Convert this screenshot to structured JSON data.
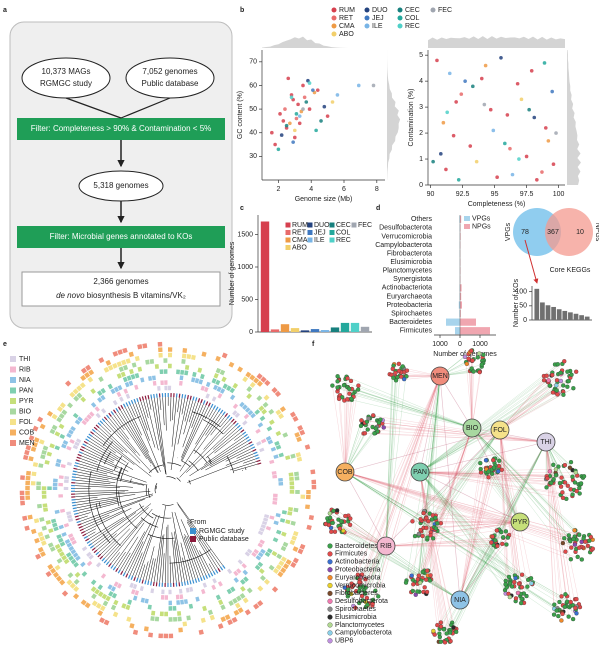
{
  "panel_labels": [
    "a",
    "b",
    "c",
    "d",
    "e",
    "f"
  ],
  "flowchart": {
    "source_left": [
      "10,373 MAGs",
      "RGMGC study"
    ],
    "source_right": [
      "7,052 genomes",
      "Public database"
    ],
    "filter1": "Filter: Completeness > 90% & Contamination < 5%",
    "intermediate": "5,318 genomes",
    "filter2": "Filter: Microbial genes annotated to KOs",
    "result": [
      "2,366 genomes",
      "de novo",
      "biosynthesis B vitamins/VK₂"
    ]
  },
  "chart_data": [
    {
      "type": "scatter",
      "xlabel": "Genome size (Mb)",
      "ylabel": "GC content (%)",
      "xlim": [
        1,
        8.5
      ],
      "xticks": [
        2,
        4,
        6,
        8
      ],
      "ylim": [
        20,
        75
      ],
      "yticks": [
        30,
        40,
        50,
        60,
        70
      ],
      "series": [
        {
          "name": "RUM",
          "color": "#d6404e",
          "x": [
            2.1,
            2.5,
            2.8,
            3.0,
            3.2,
            3.5,
            1.8,
            2.3,
            3.9,
            4.4,
            2.6,
            3.3,
            1.6,
            2.9,
            5.0
          ],
          "values": [
            48,
            42,
            56,
            38,
            52,
            60,
            35,
            45,
            50,
            58,
            63,
            44,
            40,
            54,
            47
          ]
        },
        {
          "name": "RET",
          "color": "#e86a6a",
          "x": [
            2.4,
            3.1,
            3.6
          ],
          "values": [
            50,
            46,
            55
          ]
        },
        {
          "name": "CMA",
          "color": "#ee9a45",
          "x": [
            2.7,
            4.2,
            3.4
          ],
          "values": [
            44,
            57,
            49
          ]
        },
        {
          "name": "ABO",
          "color": "#f2cf6a",
          "x": [
            3.0,
            5.3
          ],
          "values": [
            41,
            53
          ]
        },
        {
          "name": "DUO",
          "color": "#23427e",
          "x": [
            2.2,
            3.8,
            4.8
          ],
          "values": [
            39,
            62,
            51
          ]
        },
        {
          "name": "JEJ",
          "color": "#3f78c0",
          "x": [
            2.9,
            4.1
          ],
          "values": [
            36,
            58
          ]
        },
        {
          "name": "ILE",
          "color": "#78b4e6",
          "x": [
            3.3,
            6.9,
            5.6
          ],
          "values": [
            47,
            60,
            56
          ]
        },
        {
          "name": "CEC",
          "color": "#17807e",
          "x": [
            2.5,
            3.7,
            4.6
          ],
          "values": [
            43,
            53,
            45
          ]
        },
        {
          "name": "COL",
          "color": "#23a89c",
          "x": [
            3.1,
            4.3,
            2.0
          ],
          "values": [
            48,
            41,
            33
          ]
        },
        {
          "name": "REC",
          "color": "#4fd0c8",
          "x": [
            2.8,
            3.9
          ],
          "values": [
            55,
            61
          ]
        },
        {
          "name": "FEC",
          "color": "#a0a6b0",
          "x": [
            3.5,
            7.8
          ],
          "values": [
            50,
            60
          ]
        }
      ]
    },
    {
      "type": "scatter",
      "xlabel": "Completeness (%)",
      "ylabel": "Contamination (%)",
      "xlim": [
        89.8,
        100.5
      ],
      "xticks": [
        90,
        92.5,
        95,
        97.5,
        100
      ],
      "ylim": [
        0,
        5.2
      ],
      "yticks": [
        0,
        1,
        2,
        3,
        4,
        5
      ],
      "series": [
        {
          "color": "#d6404e",
          "x": [
            90.5,
            91.2,
            92,
            93.1,
            94,
            95.2,
            96,
            96.8,
            97.5,
            98.3,
            99,
            99.6,
            91.8,
            94.7,
            97.9
          ],
          "values": [
            4.8,
            0.6,
            3.2,
            1.5,
            4.1,
            0.3,
            2.7,
            3.9,
            1.1,
            0.2,
            2.2,
            0.8,
            1.9,
            2.9,
            4.4
          ]
        },
        {
          "color": "#e86a6a",
          "x": [
            92.4,
            96.2,
            98.7
          ],
          "values": [
            3.5,
            1.4,
            0.5
          ]
        },
        {
          "color": "#ee9a45",
          "x": [
            91,
            94.3,
            99.2
          ],
          "values": [
            2.4,
            4.6,
            1.7
          ]
        },
        {
          "color": "#f2cf6a",
          "x": [
            93.6,
            97.1
          ],
          "values": [
            0.9,
            3.3
          ]
        },
        {
          "color": "#23427e",
          "x": [
            90.8,
            95.5,
            98.1
          ],
          "values": [
            1.2,
            4.9,
            2.6
          ]
        },
        {
          "color": "#3f78c0",
          "x": [
            92.7,
            99.5
          ],
          "values": [
            4.0,
            3.6
          ]
        },
        {
          "color": "#78b4e6",
          "x": [
            94.9,
            96.4,
            91.5
          ],
          "values": [
            2.1,
            0.4,
            4.3
          ]
        },
        {
          "color": "#17807e",
          "x": [
            93.3,
            97.7,
            90.2
          ],
          "values": [
            3.8,
            2.9,
            0.9
          ]
        },
        {
          "color": "#23a89c",
          "x": [
            95.8,
            98.9,
            92.2
          ],
          "values": [
            1.6,
            4.7,
            0.2
          ]
        },
        {
          "color": "#4fd0c8",
          "x": [
            91.3,
            96.9
          ],
          "values": [
            2.8,
            1.0
          ]
        },
        {
          "color": "#a0a6b0",
          "x": [
            94.2,
            99.8
          ],
          "values": [
            3.1,
            2.0
          ]
        }
      ]
    },
    {
      "type": "bar",
      "ylabel": "Number of genomes",
      "categories": [
        "RUM",
        "RET",
        "CMA",
        "ABO",
        "DUO",
        "JEJ",
        "ILE",
        "CEC",
        "COL",
        "REC",
        "FEC"
      ],
      "colors": [
        "#d6404e",
        "#e86a6a",
        "#ee9a45",
        "#f2cf6a",
        "#23427e",
        "#3f78c0",
        "#78b4e6",
        "#17807e",
        "#23a89c",
        "#4fd0c8",
        "#a0a6b0"
      ],
      "values": [
        1700,
        40,
        120,
        60,
        25,
        45,
        30,
        70,
        140,
        140,
        80
      ],
      "ylim": [
        0,
        1800
      ],
      "yticks": [
        0,
        500,
        1000,
        1500
      ]
    },
    {
      "type": "hbar",
      "xlabel": "Number of genomes",
      "categories": [
        "Others",
        "Desulfobacterota",
        "Verrucomicrobia",
        "Campylobacterota",
        "Fibrobacterota",
        "Elusimicrobia",
        "Planctomycetes",
        "Synergistota",
        "Actinobacteriota",
        "Euryarchaeota",
        "Proteobacteria",
        "Spirochaetes",
        "Bacteroidetes",
        "Firmicutes"
      ],
      "series": [
        {
          "name": "VPGs",
          "color": "#a8d4ec",
          "values": [
            30,
            15,
            10,
            10,
            10,
            5,
            5,
            5,
            20,
            20,
            60,
            30,
            700,
            250
          ]
        },
        {
          "name": "NPGs",
          "color": "#f0a6b0",
          "values": [
            60,
            25,
            30,
            15,
            10,
            15,
            20,
            15,
            80,
            60,
            100,
            40,
            800,
            1500
          ]
        }
      ],
      "xlim": [
        -1300,
        1800
      ],
      "xticks": [
        {
          "value": -1000,
          "label": "1000"
        },
        0,
        1000
      ]
    },
    {
      "type": "bar",
      "title": "Core KEGGs",
      "ylabel": "Number of KOs",
      "values": [
        110,
        62,
        52,
        46,
        38,
        32,
        27,
        22,
        17,
        12
      ],
      "color": "#707070",
      "ylim": [
        0,
        120
      ],
      "yticks": [
        0,
        50,
        100
      ]
    }
  ],
  "venn": {
    "sets": [
      "VPGs",
      "NPGs"
    ],
    "counts": [
      78,
      367,
      10
    ],
    "colors": [
      "#7cc4ec",
      "#f4998f"
    ]
  },
  "tree": {
    "legend": [
      {
        "name": "THI",
        "color": "#d9d2e6"
      },
      {
        "name": "RIB",
        "color": "#f4b8d0"
      },
      {
        "name": "NIA",
        "color": "#8ec3e6"
      },
      {
        "name": "PAN",
        "color": "#7fcfb0"
      },
      {
        "name": "PYR",
        "color": "#c6df7a"
      },
      {
        "name": "BIO",
        "color": "#a8d8a0"
      },
      {
        "name": "FOL",
        "color": "#f5e28a"
      },
      {
        "name": "COB",
        "color": "#f5b060"
      },
      {
        "name": "MEN",
        "color": "#f08c7c"
      }
    ],
    "source_title": "From",
    "sources": [
      {
        "name": "RGMGC study",
        "color": "#3a8fd0"
      },
      {
        "name": "Public database",
        "color": "#8c1a3c"
      }
    ]
  },
  "network": {
    "vitamins": [
      "COB",
      "MEN",
      "BIO",
      "FOL",
      "THI",
      "PAN",
      "RIB",
      "PYR",
      "NIA"
    ],
    "legend": [
      {
        "name": "Bacteroidetes",
        "color": "#3aa04a"
      },
      {
        "name": "Firmicutes",
        "color": "#e04a4a"
      },
      {
        "name": "Actinobacteria",
        "color": "#3a6fd0"
      },
      {
        "name": "Proteobacteria",
        "color": "#8a4ab0"
      },
      {
        "name": "Euryarchaeota",
        "color": "#f08a2a"
      },
      {
        "name": "Verrucomicrobia",
        "color": "#e8d02a"
      },
      {
        "name": "Fibrobacteres",
        "color": "#7a4a2a"
      },
      {
        "name": "Desulfobacterota",
        "color": "#f07ab0"
      },
      {
        "name": "Spirochaetes",
        "color": "#8a8a8a"
      },
      {
        "name": "Elusimicrobia",
        "color": "#2a2a2a"
      },
      {
        "name": "Planctomycetes",
        "color": "#b0d890"
      },
      {
        "name": "Campylobacterota",
        "color": "#8ad0e8"
      },
      {
        "name": "UBP6",
        "color": "#c090e0"
      }
    ]
  }
}
